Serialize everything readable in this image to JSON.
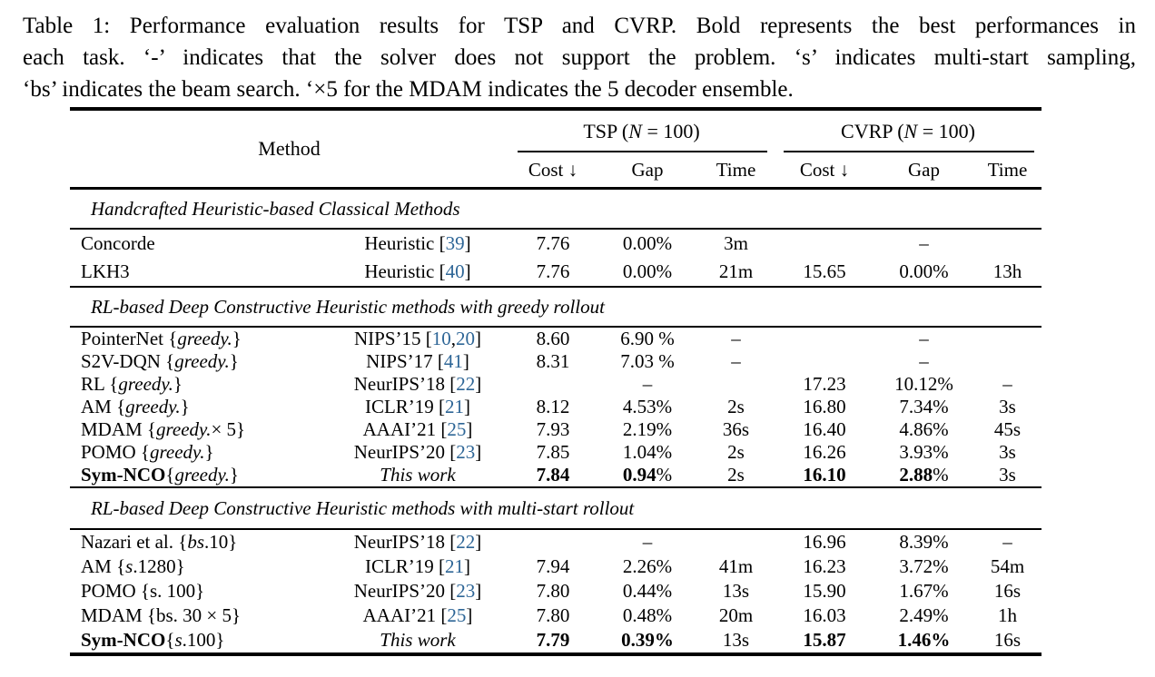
{
  "caption": {
    "lines": [
      "Table 1: Performance evaluation results for TSP and CVRP. Bold represents the best performances in",
      "each task. ‘-’ indicates that the solver does not support the problem. ‘s’ indicates multi-start sampling,",
      "‘bs’ indicates the beam search. ‘×5 for the MDAM indicates the 5 decoder ensemble."
    ]
  },
  "header": {
    "method_label": "Method",
    "groups": [
      {
        "name": "tsp",
        "label_parts": [
          {
            "t": "TSP ("
          },
          {
            "t": "N",
            "i": true
          },
          {
            "t": " = 100)"
          }
        ]
      },
      {
        "name": "cvrp",
        "label_parts": [
          {
            "t": "CVRP ("
          },
          {
            "t": "N",
            "i": true
          },
          {
            "t": " = 100)"
          }
        ]
      }
    ],
    "subcolumns": [
      "Cost ↓",
      "Gap",
      "Time",
      "Cost ↓",
      "Gap",
      "Time"
    ]
  },
  "link_color": "#2d6596",
  "table": {
    "column_names": [
      "method",
      "venue",
      "tsp-cost",
      "tsp-gap",
      "tsp-time",
      "cvrp-cost",
      "cvrp-gap",
      "cvrp-time"
    ],
    "sections": [
      {
        "title": "Handcrafted Heuristic-based Classical Methods",
        "rows": [
          {
            "cells": [
              [
                {
                  "t": "Concorde"
                }
              ],
              [
                {
                  "t": "Heuristic ["
                },
                {
                  "t": "39",
                  "ref": true
                },
                {
                  "t": "]"
                }
              ],
              [
                {
                  "t": "7.76"
                }
              ],
              [
                {
                  "t": "0.00%"
                }
              ],
              [
                {
                  "t": "3m"
                }
              ],
              [],
              [
                {
                  "t": "–"
                }
              ],
              []
            ]
          },
          {
            "cells": [
              [
                {
                  "t": "LKH3"
                }
              ],
              [
                {
                  "t": "Heuristic ["
                },
                {
                  "t": "40",
                  "ref": true
                },
                {
                  "t": "]"
                }
              ],
              [
                {
                  "t": "7.76"
                }
              ],
              [
                {
                  "t": "0.00%"
                }
              ],
              [
                {
                  "t": "21m"
                }
              ],
              [
                {
                  "t": "15.65"
                }
              ],
              [
                {
                  "t": "0.00%"
                }
              ],
              [
                {
                  "t": "13h"
                }
              ]
            ]
          }
        ]
      },
      {
        "title": "RL-based Deep Constructive Heuristic methods with greedy rollout",
        "rows": [
          {
            "cells": [
              [
                {
                  "t": "PointerNet {"
                },
                {
                  "t": "greedy.",
                  "i": true
                },
                {
                  "t": "}"
                }
              ],
              [
                {
                  "t": "NIPS’15 ["
                },
                {
                  "t": "10",
                  "ref": true
                },
                {
                  "t": ", "
                },
                {
                  "t": "20",
                  "ref": true
                },
                {
                  "t": "]"
                }
              ],
              [
                {
                  "t": "8.60"
                }
              ],
              [
                {
                  "t": "6.90 %"
                }
              ],
              [
                {
                  "t": "–"
                }
              ],
              [],
              [
                {
                  "t": "–"
                }
              ],
              []
            ]
          },
          {
            "cells": [
              [
                {
                  "t": "S2V-DQN {"
                },
                {
                  "t": "greedy.",
                  "i": true
                },
                {
                  "t": "}"
                }
              ],
              [
                {
                  "t": "NIPS’17 ["
                },
                {
                  "t": "41",
                  "ref": true
                },
                {
                  "t": "]"
                }
              ],
              [
                {
                  "t": "8.31"
                }
              ],
              [
                {
                  "t": "7.03 %"
                }
              ],
              [
                {
                  "t": "–"
                }
              ],
              [],
              [
                {
                  "t": "–"
                }
              ],
              []
            ]
          },
          {
            "cells": [
              [
                {
                  "t": "RL {"
                },
                {
                  "t": "greedy.",
                  "i": true
                },
                {
                  "t": "}"
                }
              ],
              [
                {
                  "t": "NeurIPS’18 ["
                },
                {
                  "t": "22",
                  "ref": true
                },
                {
                  "t": "]"
                }
              ],
              [],
              [
                {
                  "t": "–"
                }
              ],
              [],
              [
                {
                  "t": "17.23"
                }
              ],
              [
                {
                  "t": "10.12%"
                }
              ],
              [
                {
                  "t": "–"
                }
              ]
            ]
          },
          {
            "cells": [
              [
                {
                  "t": "AM {"
                },
                {
                  "t": "greedy.",
                  "i": true
                },
                {
                  "t": "}"
                }
              ],
              [
                {
                  "t": "ICLR’19 ["
                },
                {
                  "t": "21",
                  "ref": true
                },
                {
                  "t": "]"
                }
              ],
              [
                {
                  "t": "8.12"
                }
              ],
              [
                {
                  "t": "4.53%"
                }
              ],
              [
                {
                  "t": "2s"
                }
              ],
              [
                {
                  "t": "16.80"
                }
              ],
              [
                {
                  "t": "7.34%"
                }
              ],
              [
                {
                  "t": "3s"
                }
              ]
            ]
          },
          {
            "cells": [
              [
                {
                  "t": "MDAM {"
                },
                {
                  "t": "greedy.",
                  "i": true
                },
                {
                  "t": "× 5}"
                }
              ],
              [
                {
                  "t": "AAAI’21 ["
                },
                {
                  "t": "25",
                  "ref": true
                },
                {
                  "t": "]"
                }
              ],
              [
                {
                  "t": "7.93"
                }
              ],
              [
                {
                  "t": "2.19%"
                }
              ],
              [
                {
                  "t": "36s"
                }
              ],
              [
                {
                  "t": "16.40"
                }
              ],
              [
                {
                  "t": "4.86%"
                }
              ],
              [
                {
                  "t": "45s"
                }
              ]
            ]
          },
          {
            "cells": [
              [
                {
                  "t": "POMO {"
                },
                {
                  "t": "greedy.",
                  "i": true
                },
                {
                  "t": "}"
                }
              ],
              [
                {
                  "t": "NeurIPS’20 ["
                },
                {
                  "t": "23",
                  "ref": true
                },
                {
                  "t": "]"
                }
              ],
              [
                {
                  "t": "7.85"
                }
              ],
              [
                {
                  "t": "1.04%"
                }
              ],
              [
                {
                  "t": "2s"
                }
              ],
              [
                {
                  "t": "16.26"
                }
              ],
              [
                {
                  "t": "3.93%"
                }
              ],
              [
                {
                  "t": "3s"
                }
              ]
            ]
          },
          {
            "cells": [
              [
                {
                  "t": "Sym-NCO",
                  "b": true
                },
                {
                  "t": " {"
                },
                {
                  "t": "greedy.",
                  "i": true
                },
                {
                  "t": "}"
                }
              ],
              [
                {
                  "t": "This work",
                  "i": true
                }
              ],
              [
                {
                  "t": "7.84",
                  "b": true
                }
              ],
              [
                {
                  "t": "0.94",
                  "b": true
                },
                {
                  "t": "%"
                }
              ],
              [
                {
                  "t": "2s"
                }
              ],
              [
                {
                  "t": "16.10",
                  "b": true
                }
              ],
              [
                {
                  "t": "2.88",
                  "b": true
                },
                {
                  "t": "%"
                }
              ],
              [
                {
                  "t": "3s"
                }
              ]
            ]
          }
        ]
      },
      {
        "title": "RL-based Deep Constructive Heuristic methods with multi-start rollout",
        "rows": [
          {
            "cells": [
              [
                {
                  "t": "Nazari et al. {"
                },
                {
                  "t": "bs",
                  "i": true
                },
                {
                  "t": ".10}"
                }
              ],
              [
                {
                  "t": "NeurIPS’18 ["
                },
                {
                  "t": "22",
                  "ref": true
                },
                {
                  "t": "]"
                }
              ],
              [],
              [
                {
                  "t": "–"
                }
              ],
              [],
              [
                {
                  "t": "16.96"
                }
              ],
              [
                {
                  "t": "8.39%"
                }
              ],
              [
                {
                  "t": "–"
                }
              ]
            ]
          },
          {
            "cells": [
              [
                {
                  "t": "AM {"
                },
                {
                  "t": "s",
                  "i": true
                },
                {
                  "t": ".1280}"
                }
              ],
              [
                {
                  "t": "ICLR’19 ["
                },
                {
                  "t": "21",
                  "ref": true
                },
                {
                  "t": "]"
                }
              ],
              [
                {
                  "t": "7.94"
                }
              ],
              [
                {
                  "t": "2.26%"
                }
              ],
              [
                {
                  "t": "41m"
                }
              ],
              [
                {
                  "t": "16.23"
                }
              ],
              [
                {
                  "t": "3.72%"
                }
              ],
              [
                {
                  "t": "54m"
                }
              ]
            ]
          },
          {
            "cells": [
              [
                {
                  "t": "POMO {s. 100}"
                }
              ],
              [
                {
                  "t": "NeurIPS’20 ["
                },
                {
                  "t": "23",
                  "ref": true
                },
                {
                  "t": "]"
                }
              ],
              [
                {
                  "t": "7.80"
                }
              ],
              [
                {
                  "t": "0.44%"
                }
              ],
              [
                {
                  "t": "13s"
                }
              ],
              [
                {
                  "t": "15.90"
                }
              ],
              [
                {
                  "t": "1.67%"
                }
              ],
              [
                {
                  "t": "16s"
                }
              ]
            ]
          },
          {
            "cells": [
              [
                {
                  "t": "MDAM {bs. 30 × 5}"
                }
              ],
              [
                {
                  "t": "AAAI’21 ["
                },
                {
                  "t": "25",
                  "ref": true
                },
                {
                  "t": "]"
                }
              ],
              [
                {
                  "t": "7.80"
                }
              ],
              [
                {
                  "t": "0.48%"
                }
              ],
              [
                {
                  "t": "20m"
                }
              ],
              [
                {
                  "t": "16.03"
                }
              ],
              [
                {
                  "t": "2.49%"
                }
              ],
              [
                {
                  "t": "1h"
                }
              ]
            ]
          },
          {
            "cells": [
              [
                {
                  "t": "Sym-NCO",
                  "b": true
                },
                {
                  "t": " {"
                },
                {
                  "t": "s",
                  "i": true
                },
                {
                  "t": ".100}"
                }
              ],
              [
                {
                  "t": "This work",
                  "i": true
                }
              ],
              [
                {
                  "t": "7.79",
                  "b": true
                }
              ],
              [
                {
                  "t": "0.39%",
                  "b": true
                }
              ],
              [
                {
                  "t": "13s"
                }
              ],
              [
                {
                  "t": "15.87",
                  "b": true
                }
              ],
              [
                {
                  "t": "1.46%",
                  "b": true
                }
              ],
              [
                {
                  "t": "16s"
                }
              ]
            ]
          }
        ]
      }
    ]
  }
}
